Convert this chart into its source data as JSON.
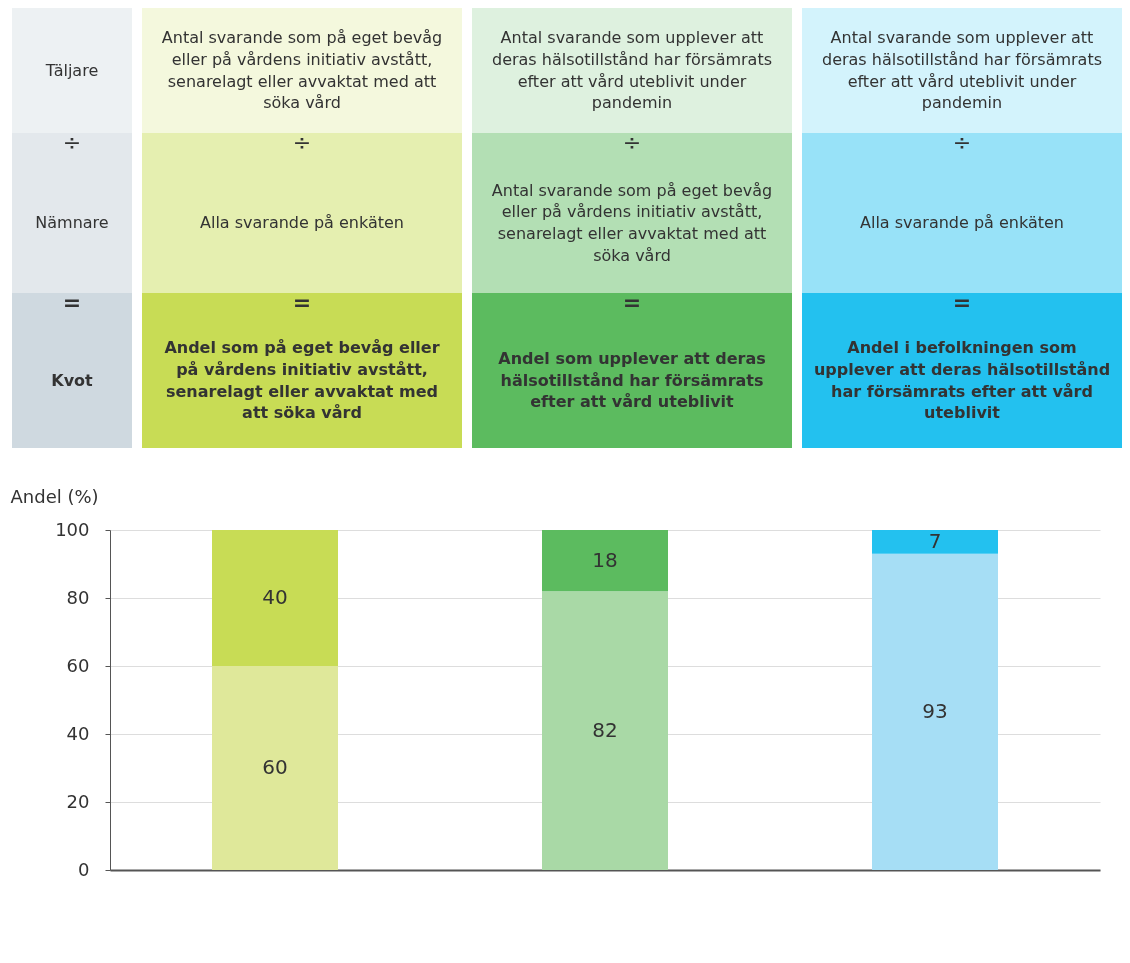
{
  "chart_data": {
    "type": "bar",
    "stacked": true,
    "ylabel": "Andel (%)",
    "categories": [
      null,
      null,
      null
    ],
    "series": [
      {
        "values": [
          60,
          82,
          93
        ],
        "colors": [
          "#dfe89a",
          "#a9d9a6",
          "#a6def5"
        ]
      },
      {
        "values": [
          40,
          18,
          7
        ],
        "colors": [
          "#c8dc55",
          "#5cbb5f",
          "#23c1ef"
        ]
      }
    ],
    "ylim": [
      0,
      100
    ],
    "yticks": [
      0,
      20,
      40,
      60,
      80,
      100
    ],
    "grid": "y",
    "tick_labels": "y",
    "data_labels": true,
    "annotations": [
      "Täljare",
      "Antal svarande som på eget bevåg eller på vårdens initiativ avstått, senarelagt eller avvaktat med att söka vård",
      "Antal svarande som upplever att deras hälsotillstånd har försämrats efter att vård uteblivit under pandemin",
      "Antal svarande som upplever att deras hälsotillstånd har försämrats efter att vård uteblivit under pandemin",
      "÷",
      "÷",
      "÷",
      "÷",
      "Nämnare",
      "Alla svarande på enkäten",
      "Antal svarande som på eget bevåg eller på vårdens initiativ avstått, senarelagt eller avvaktat med att söka vård",
      "Alla svarande på enkäten",
      "=",
      "=",
      "=",
      "=",
      "Kvot",
      "Andel som på eget bevåg eller på vårdens initiativ avstått, senarelagt eller avvaktat med att söka vård",
      "Andel som upplever att deras hälsotillstånd har försämrats efter att vård uteblivit",
      "Andel i befolkningen som upplever att deras hälsotillstånd har försämrats efter att vård uteblivit"
    ]
  }
}
